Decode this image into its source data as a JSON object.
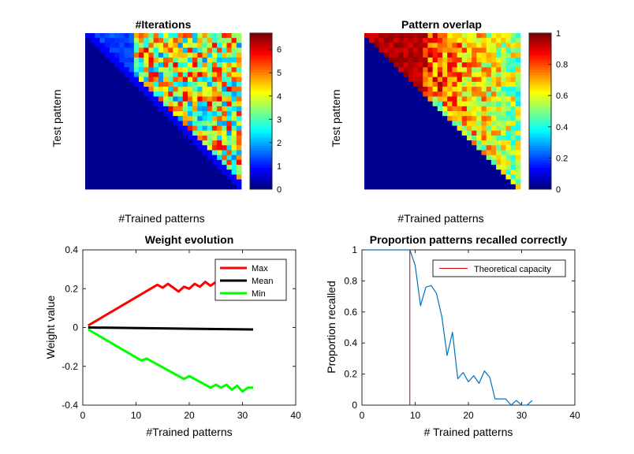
{
  "colors": {
    "max": "#ff0000",
    "mean": "#000000",
    "min": "#00ff00",
    "recall": "#0072bd",
    "capacity": "#cc0000",
    "axis": "#262626",
    "background": "#ffffff"
  },
  "chart_data": [
    {
      "type": "heatmap",
      "title": "#Iterations",
      "xlabel": "#Trained patterns",
      "ylabel": "Test pattern",
      "colormap": "jet",
      "colorbar": {
        "range": [
          0,
          6.7
        ],
        "ticks": [
          "0",
          "1",
          "2",
          "3",
          "4",
          "5",
          "6"
        ]
      },
      "grid_size": [
        32,
        32
      ],
      "lower_triangle_value": 0,
      "upper_triangle_value_estimate": "mostly 1-6 iterations, near-diagonal cells 0.5-1"
    },
    {
      "type": "heatmap",
      "title": "Pattern overlap",
      "xlabel": "#Trained patterns",
      "ylabel": "Test pattern",
      "colormap": "jet",
      "colorbar": {
        "range": [
          0,
          1
        ],
        "ticks": [
          "0",
          "0.2",
          "0.4",
          "0.6",
          "0.8",
          "1"
        ]
      },
      "grid_size": [
        32,
        32
      ],
      "lower_triangle_value": 0,
      "upper_triangle_value_estimate": "about 1 for early patterns, decreasing to about 0.3-0.9 for later ones"
    },
    {
      "type": "line",
      "title": "Weight evolution",
      "xlabel": "#Trained patterns",
      "ylabel": "Weight value",
      "xlim": [
        0,
        40
      ],
      "ylim": [
        -0.4,
        0.4
      ],
      "xticks": [
        "0",
        "10",
        "20",
        "30",
        "40"
      ],
      "yticks": [
        "-0.4",
        "-0.2",
        "0",
        "0.2",
        "0.4"
      ],
      "legend_position": "top-right",
      "series": [
        {
          "name": "Max",
          "x": [
            1,
            14,
            15,
            16,
            17,
            18,
            19,
            20,
            21,
            22,
            23,
            24,
            25
          ],
          "y": [
            0.01,
            0.22,
            0.205,
            0.225,
            0.205,
            0.185,
            0.21,
            0.2,
            0.225,
            0.21,
            0.235,
            0.215,
            0.235
          ]
        },
        {
          "name": "Mean",
          "x": [
            1,
            32
          ],
          "y": [
            0.0,
            -0.01
          ]
        },
        {
          "name": "Min",
          "x": [
            1,
            11,
            12,
            19,
            20,
            24,
            25,
            26,
            27,
            28,
            29,
            30,
            31,
            32
          ],
          "y": [
            -0.01,
            -0.17,
            -0.16,
            -0.265,
            -0.25,
            -0.31,
            -0.295,
            -0.31,
            -0.295,
            -0.32,
            -0.3,
            -0.33,
            -0.31,
            -0.31
          ]
        }
      ]
    },
    {
      "type": "line",
      "title": "Proportion patterns recalled correctly",
      "xlabel": "# Trained patterns",
      "ylabel": "Proportion recalled",
      "xlim": [
        0,
        40
      ],
      "ylim": [
        0,
        1
      ],
      "xticks": [
        "0",
        "10",
        "20",
        "30",
        "40"
      ],
      "yticks": [
        "0",
        "0.2",
        "0.4",
        "0.6",
        "0.8",
        "1"
      ],
      "legend_position": "top-right",
      "series": [
        {
          "name": "",
          "x": [
            1,
            2,
            3,
            4,
            5,
            6,
            7,
            8,
            9,
            10,
            11,
            12,
            13,
            14,
            15,
            16,
            17,
            18,
            19,
            20,
            21,
            22,
            23,
            24,
            25,
            26,
            27,
            28,
            29,
            30,
            31,
            32
          ],
          "y": [
            1,
            1,
            1,
            1,
            1,
            1,
            1,
            1,
            1,
            0.9,
            0.64,
            0.76,
            0.77,
            0.72,
            0.57,
            0.32,
            0.47,
            0.17,
            0.21,
            0.15,
            0.19,
            0.14,
            0.22,
            0.18,
            0.04,
            0.04,
            0.04,
            0.0,
            0.03,
            0.0,
            0.0,
            0.03
          ]
        }
      ],
      "vertical_lines": [
        {
          "name": "Theoretical capacity",
          "x": 9
        }
      ]
    }
  ]
}
